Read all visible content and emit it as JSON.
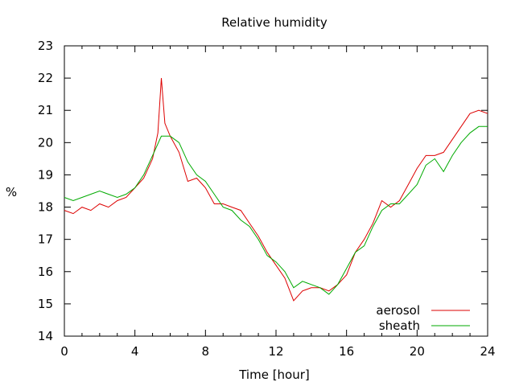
{
  "chart_data": {
    "type": "line",
    "title": "Relative humidity",
    "xlabel": "Time [hour]",
    "ylabel": "%",
    "xlim": [
      0,
      24
    ],
    "ylim": [
      14,
      23
    ],
    "xticks": [
      0,
      4,
      8,
      12,
      16,
      20,
      24
    ],
    "yticks": [
      14,
      15,
      16,
      17,
      18,
      19,
      20,
      21,
      22,
      23
    ],
    "grid": false,
    "legend_position": "bottom-right",
    "series": [
      {
        "name": "aerosol",
        "color": "#dd0000",
        "x": [
          0,
          0.5,
          1,
          1.5,
          2,
          2.5,
          3,
          3.5,
          4,
          4.5,
          5,
          5.3,
          5.5,
          5.7,
          6,
          6.5,
          7,
          7.5,
          8,
          8.5,
          9,
          9.5,
          10,
          10.5,
          11,
          11.5,
          12,
          12.5,
          13,
          13.5,
          14,
          14.5,
          15,
          15.5,
          16,
          16.5,
          17,
          17.5,
          18,
          18.5,
          19,
          19.5,
          20,
          20.5,
          21,
          21.5,
          22,
          22.5,
          23,
          23.5,
          24
        ],
        "values": [
          17.9,
          17.8,
          18.0,
          17.9,
          18.1,
          18.0,
          18.2,
          18.3,
          18.6,
          18.9,
          19.5,
          20.3,
          22.0,
          20.6,
          20.2,
          19.7,
          18.8,
          18.9,
          18.6,
          18.1,
          18.1,
          18.0,
          17.9,
          17.5,
          17.1,
          16.6,
          16.2,
          15.8,
          15.1,
          15.4,
          15.5,
          15.5,
          15.4,
          15.6,
          15.9,
          16.6,
          17.0,
          17.5,
          18.2,
          18.0,
          18.2,
          18.7,
          19.2,
          19.6,
          19.6,
          19.7,
          20.1,
          20.5,
          20.9,
          21.0,
          20.9
        ]
      },
      {
        "name": "sheath",
        "color": "#00aa00",
        "x": [
          0,
          0.5,
          1,
          1.5,
          2,
          2.5,
          3,
          3.5,
          4,
          4.5,
          5,
          5.5,
          6,
          6.5,
          7,
          7.5,
          8,
          8.5,
          9,
          9.5,
          10,
          10.5,
          11,
          11.5,
          12,
          12.5,
          13,
          13.5,
          14,
          14.5,
          15,
          15.5,
          16,
          16.5,
          17,
          17.5,
          18,
          18.5,
          19,
          19.5,
          20,
          20.5,
          21,
          21.5,
          22,
          22.5,
          23,
          23.5,
          24
        ],
        "values": [
          18.3,
          18.2,
          18.3,
          18.4,
          18.5,
          18.4,
          18.3,
          18.4,
          18.6,
          19.0,
          19.6,
          20.2,
          20.2,
          20.0,
          19.4,
          19.0,
          18.8,
          18.4,
          18.0,
          17.9,
          17.6,
          17.4,
          17.0,
          16.5,
          16.3,
          16.0,
          15.5,
          15.7,
          15.6,
          15.5,
          15.3,
          15.6,
          16.1,
          16.6,
          16.8,
          17.4,
          17.9,
          18.1,
          18.1,
          18.4,
          18.7,
          19.3,
          19.5,
          19.1,
          19.6,
          20.0,
          20.3,
          20.5,
          20.5
        ]
      }
    ]
  }
}
